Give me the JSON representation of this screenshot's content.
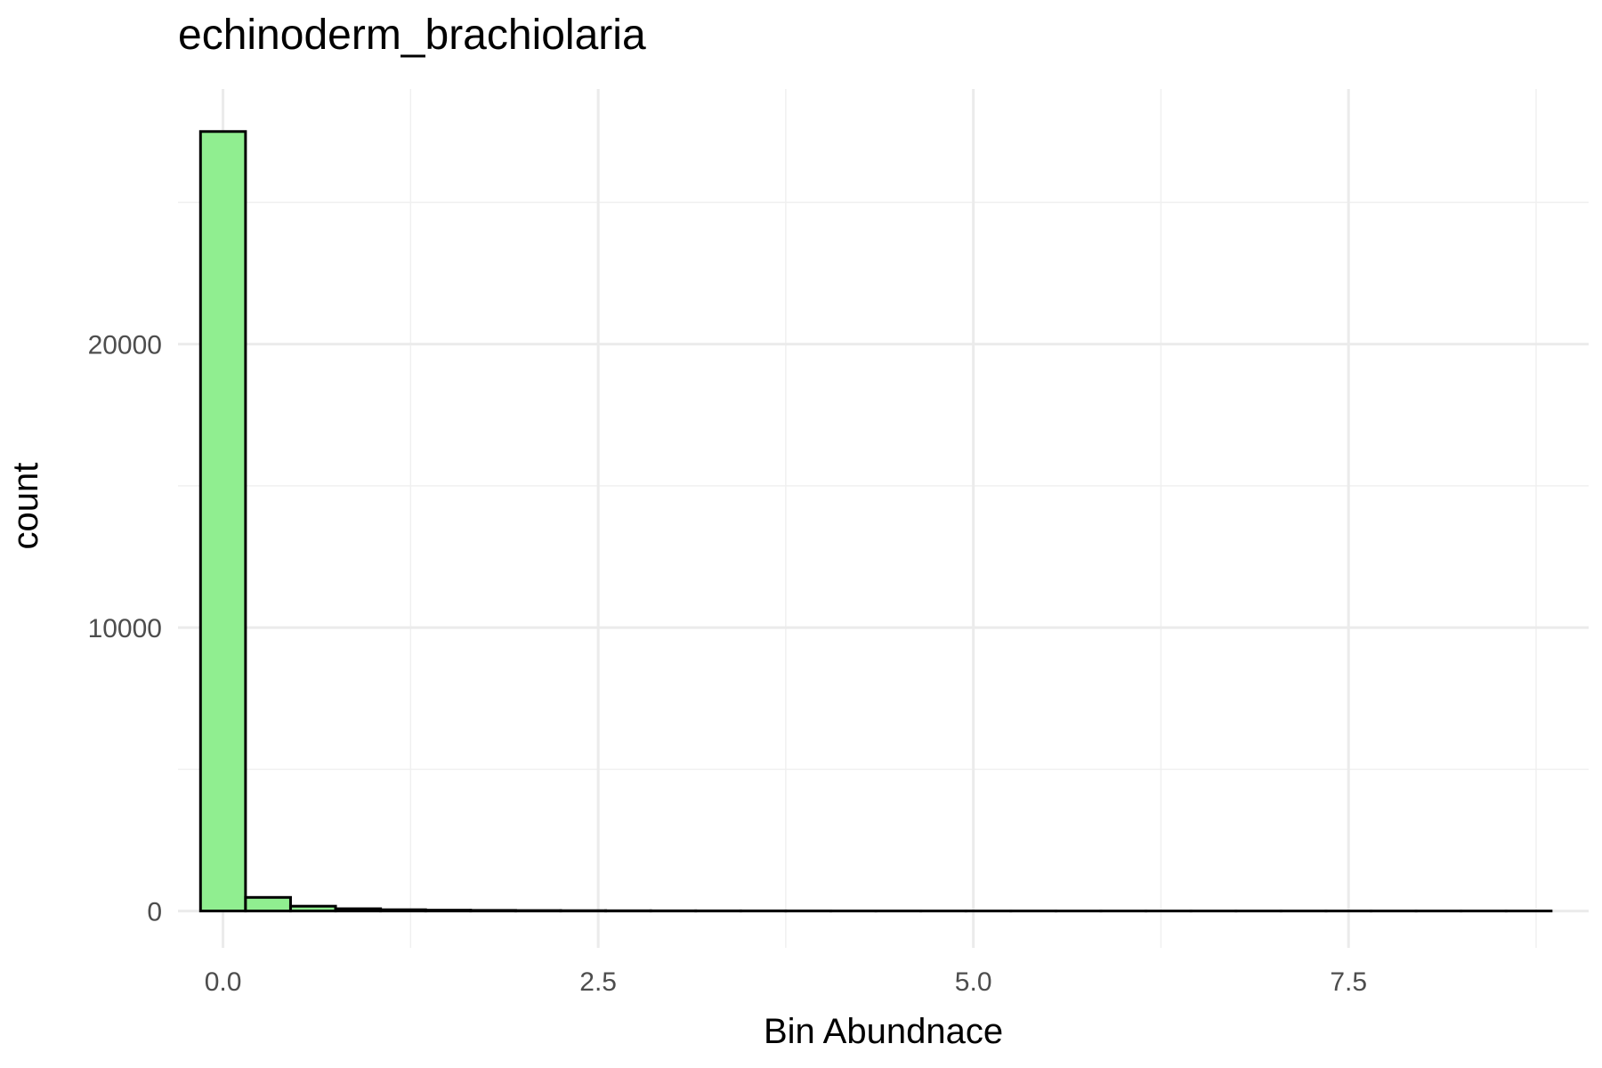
{
  "chart_data": {
    "type": "bar",
    "title": "echinoderm_brachiolaria",
    "xlabel": "Bin Abundnace",
    "ylabel": "count",
    "xlim": [
      -0.3,
      9.1
    ],
    "ylim": [
      -1300,
      29000
    ],
    "x_ticks": [
      0.0,
      2.5,
      5.0,
      7.5
    ],
    "x_tick_labels": [
      "0.0",
      "2.5",
      "5.0",
      "7.5"
    ],
    "y_ticks": [
      0,
      10000,
      20000
    ],
    "y_tick_labels": [
      "0",
      "10000",
      "20000"
    ],
    "bin_width": 0.3,
    "bins_start": [
      -0.15,
      0.15,
      0.45,
      0.75,
      1.05,
      1.35,
      1.65,
      1.95,
      2.25,
      2.55,
      2.85,
      3.15,
      3.45,
      3.75,
      4.05,
      4.35,
      4.65,
      4.95,
      5.25,
      5.55,
      5.85,
      6.15,
      6.45,
      6.75,
      7.05,
      7.35,
      7.65,
      7.95,
      8.25,
      8.55
    ],
    "values": [
      27500,
      480,
      170,
      80,
      45,
      30,
      22,
      16,
      12,
      9,
      7,
      6,
      5,
      4,
      3,
      3,
      2,
      2,
      2,
      1,
      1,
      1,
      1,
      1,
      1,
      1,
      1,
      1,
      1,
      1
    ],
    "fill_color": "#90EE90",
    "stroke_color": "#000000",
    "grid": true,
    "legend": "none"
  }
}
